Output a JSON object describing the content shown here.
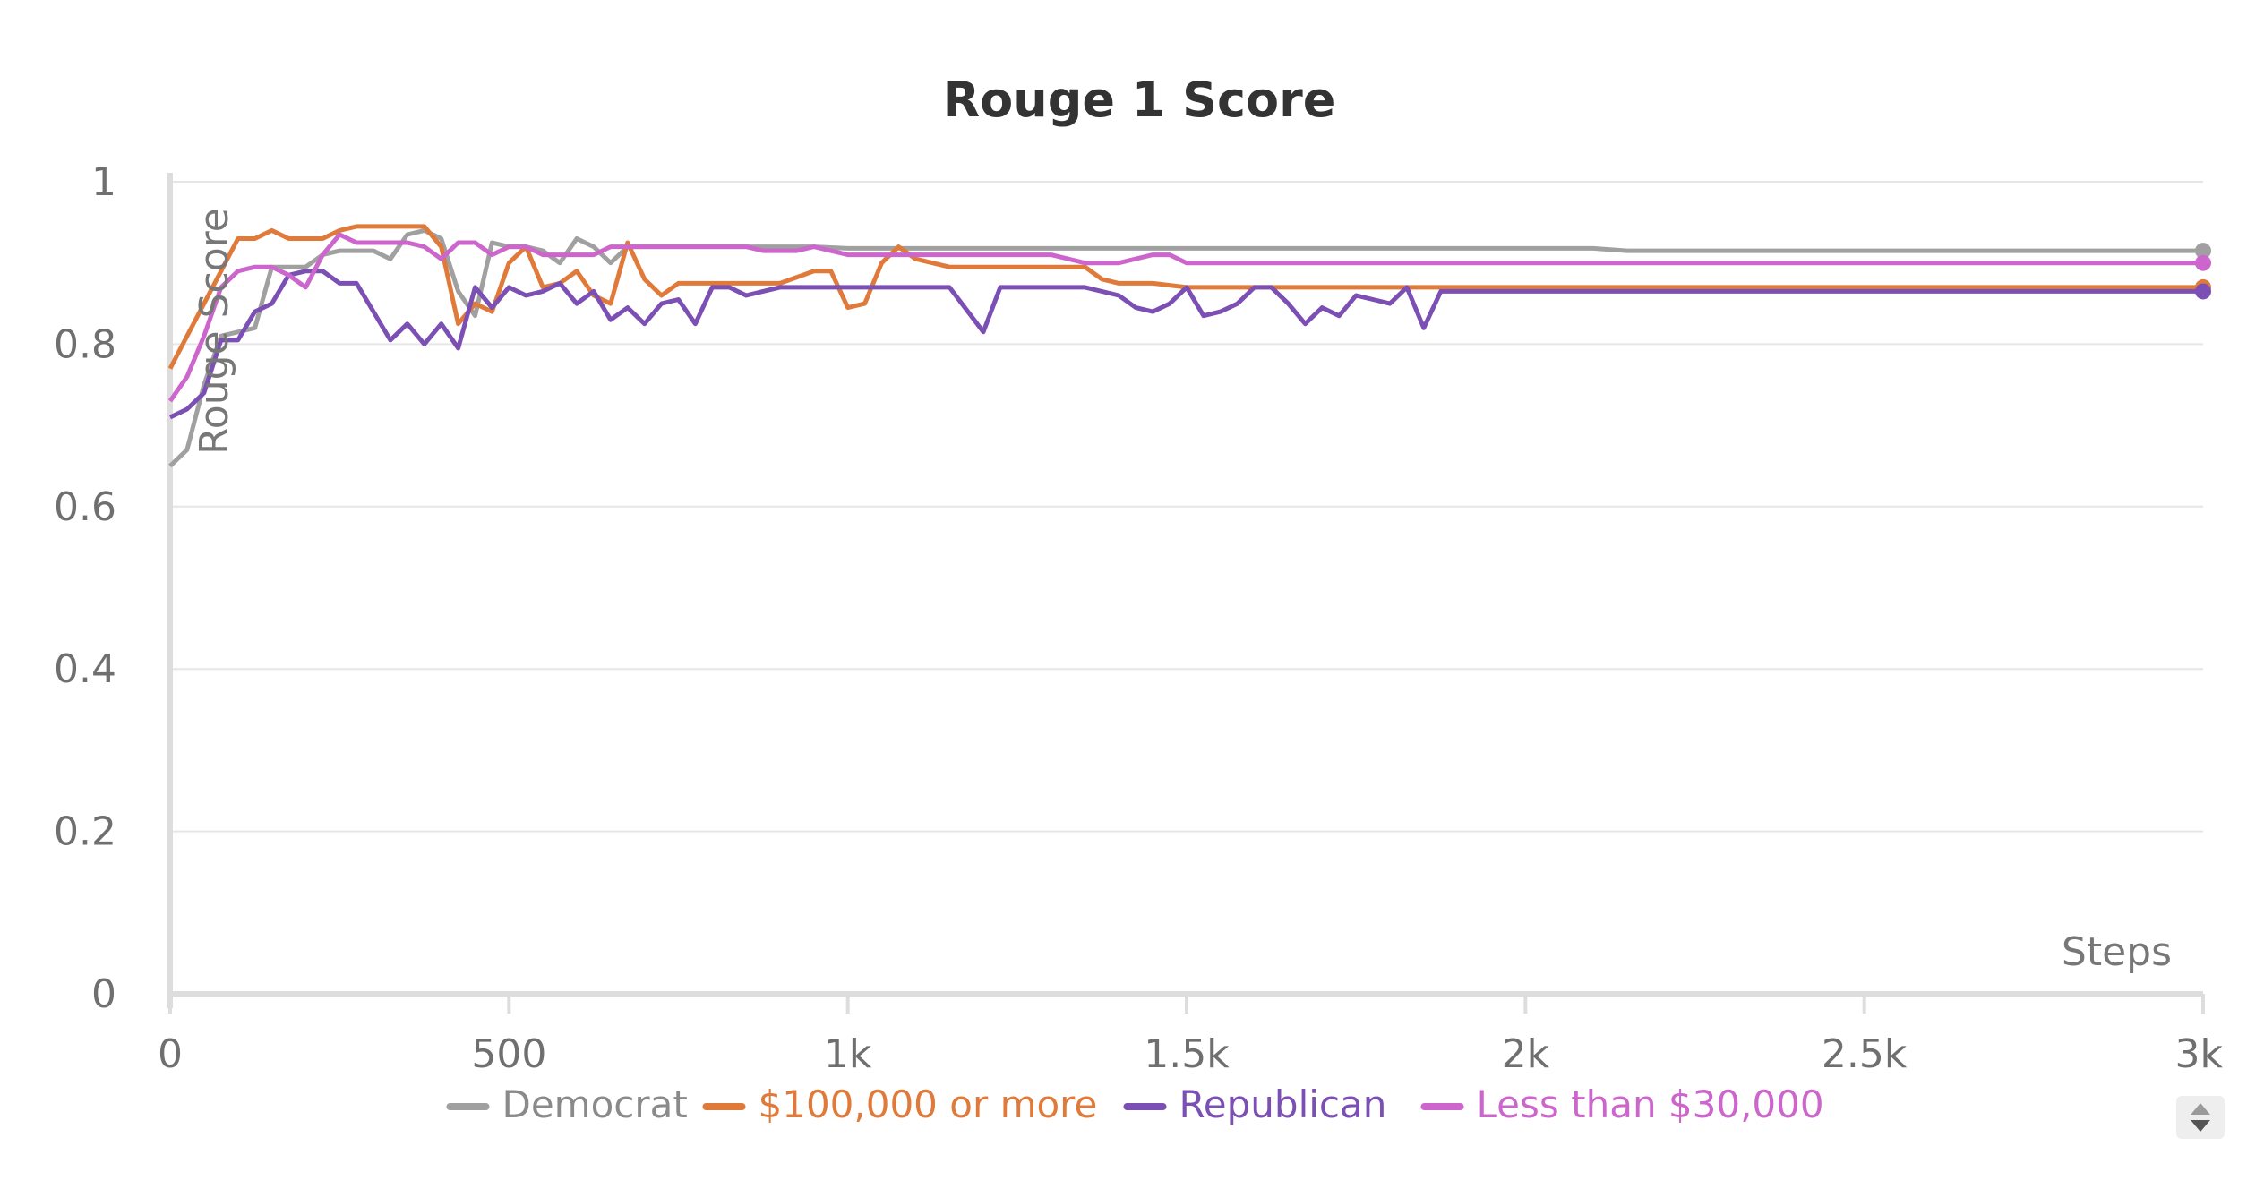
{
  "chart_data": {
    "type": "line",
    "title": "Rouge 1 Score",
    "xlabel": "Steps",
    "ylabel": "Rouge Score",
    "xlim": [
      0,
      3000
    ],
    "ylim": [
      0,
      1
    ],
    "xticks": [
      0,
      500,
      1000,
      1500,
      2000,
      2500,
      3000
    ],
    "xtick_labels": [
      "0",
      "500",
      "1k",
      "1.5k",
      "2k",
      "2.5k",
      "3k"
    ],
    "yticks": [
      0,
      0.2,
      0.4,
      0.6,
      0.8,
      1
    ],
    "ytick_labels": [
      "0",
      "0.2",
      "0.4",
      "0.6",
      "0.8",
      "1"
    ],
    "grid": true,
    "legend_position": "bottom",
    "series": [
      {
        "name": "Democrat",
        "color": "#a0a0a0",
        "x": [
          0,
          25,
          50,
          75,
          100,
          125,
          150,
          175,
          200,
          225,
          250,
          275,
          300,
          325,
          350,
          375,
          400,
          425,
          450,
          475,
          500,
          525,
          550,
          575,
          600,
          625,
          650,
          675,
          700,
          750,
          800,
          850,
          900,
          950,
          1000,
          1500,
          2000,
          2100,
          2150,
          3000
        ],
        "y": [
          0.65,
          0.67,
          0.75,
          0.81,
          0.815,
          0.82,
          0.895,
          0.895,
          0.895,
          0.91,
          0.915,
          0.915,
          0.915,
          0.905,
          0.935,
          0.94,
          0.93,
          0.865,
          0.835,
          0.925,
          0.92,
          0.92,
          0.915,
          0.9,
          0.93,
          0.92,
          0.9,
          0.92,
          0.92,
          0.92,
          0.92,
          0.92,
          0.92,
          0.92,
          0.918,
          0.918,
          0.918,
          0.918,
          0.915,
          0.915
        ]
      },
      {
        "name": "$100,000 or more",
        "color": "#e07a3a",
        "x": [
          0,
          25,
          50,
          75,
          100,
          125,
          150,
          175,
          200,
          225,
          250,
          275,
          300,
          325,
          350,
          375,
          400,
          425,
          450,
          475,
          500,
          525,
          550,
          575,
          600,
          625,
          650,
          675,
          700,
          725,
          750,
          775,
          800,
          850,
          900,
          950,
          975,
          1000,
          1025,
          1050,
          1075,
          1100,
          1125,
          1150,
          1200,
          1250,
          1300,
          1350,
          1375,
          1400,
          1450,
          1500,
          2000,
          3000
        ],
        "y": [
          0.77,
          0.81,
          0.85,
          0.89,
          0.93,
          0.93,
          0.94,
          0.93,
          0.93,
          0.93,
          0.94,
          0.945,
          0.945,
          0.945,
          0.945,
          0.945,
          0.92,
          0.825,
          0.85,
          0.84,
          0.9,
          0.92,
          0.87,
          0.875,
          0.89,
          0.86,
          0.85,
          0.925,
          0.88,
          0.86,
          0.875,
          0.875,
          0.875,
          0.875,
          0.875,
          0.89,
          0.89,
          0.845,
          0.85,
          0.9,
          0.92,
          0.905,
          0.9,
          0.895,
          0.895,
          0.895,
          0.895,
          0.895,
          0.88,
          0.875,
          0.875,
          0.87,
          0.87,
          0.87
        ]
      },
      {
        "name": "Republican",
        "color": "#7b4fb3",
        "x": [
          0,
          25,
          50,
          75,
          100,
          125,
          150,
          175,
          200,
          225,
          250,
          275,
          300,
          325,
          350,
          375,
          400,
          425,
          450,
          475,
          500,
          525,
          550,
          575,
          600,
          625,
          650,
          675,
          700,
          725,
          750,
          775,
          800,
          825,
          850,
          875,
          900,
          925,
          950,
          975,
          1000,
          1025,
          1050,
          1100,
          1150,
          1200,
          1225,
          1250,
          1275,
          1300,
          1350,
          1400,
          1425,
          1450,
          1475,
          1500,
          1525,
          1550,
          1575,
          1600,
          1625,
          1650,
          1675,
          1700,
          1725,
          1750,
          1775,
          1800,
          1825,
          1850,
          1875,
          1900,
          1925,
          1950,
          1975,
          2000,
          3000
        ],
        "y": [
          0.71,
          0.72,
          0.74,
          0.805,
          0.805,
          0.84,
          0.85,
          0.885,
          0.89,
          0.89,
          0.875,
          0.875,
          0.84,
          0.805,
          0.825,
          0.8,
          0.825,
          0.795,
          0.87,
          0.845,
          0.87,
          0.86,
          0.865,
          0.875,
          0.85,
          0.865,
          0.83,
          0.845,
          0.825,
          0.85,
          0.855,
          0.825,
          0.87,
          0.87,
          0.86,
          0.865,
          0.87,
          0.87,
          0.87,
          0.87,
          0.87,
          0.87,
          0.87,
          0.87,
          0.87,
          0.815,
          0.87,
          0.87,
          0.87,
          0.87,
          0.87,
          0.86,
          0.845,
          0.84,
          0.85,
          0.87,
          0.835,
          0.84,
          0.85,
          0.87,
          0.87,
          0.85,
          0.825,
          0.845,
          0.835,
          0.86,
          0.855,
          0.85,
          0.87,
          0.82,
          0.865,
          0.865,
          0.865,
          0.865,
          0.865,
          0.865,
          0.865
        ]
      },
      {
        "name": "Less than $30,000",
        "color": "#cc66cc",
        "x": [
          0,
          25,
          50,
          75,
          100,
          125,
          150,
          175,
          200,
          225,
          250,
          275,
          300,
          325,
          350,
          375,
          400,
          425,
          450,
          475,
          500,
          525,
          550,
          575,
          600,
          625,
          650,
          675,
          700,
          750,
          800,
          850,
          875,
          900,
          925,
          950,
          975,
          1000,
          1100,
          1200,
          1300,
          1350,
          1400,
          1450,
          1475,
          1500,
          3000
        ],
        "y": [
          0.73,
          0.76,
          0.81,
          0.87,
          0.89,
          0.895,
          0.895,
          0.885,
          0.87,
          0.91,
          0.935,
          0.925,
          0.925,
          0.925,
          0.925,
          0.92,
          0.905,
          0.925,
          0.925,
          0.91,
          0.92,
          0.92,
          0.91,
          0.91,
          0.91,
          0.91,
          0.92,
          0.92,
          0.92,
          0.92,
          0.92,
          0.92,
          0.915,
          0.915,
          0.915,
          0.92,
          0.915,
          0.91,
          0.91,
          0.91,
          0.91,
          0.9,
          0.9,
          0.91,
          0.91,
          0.9,
          0.9
        ]
      }
    ]
  },
  "scroll_icon": "up-down-arrows-icon"
}
